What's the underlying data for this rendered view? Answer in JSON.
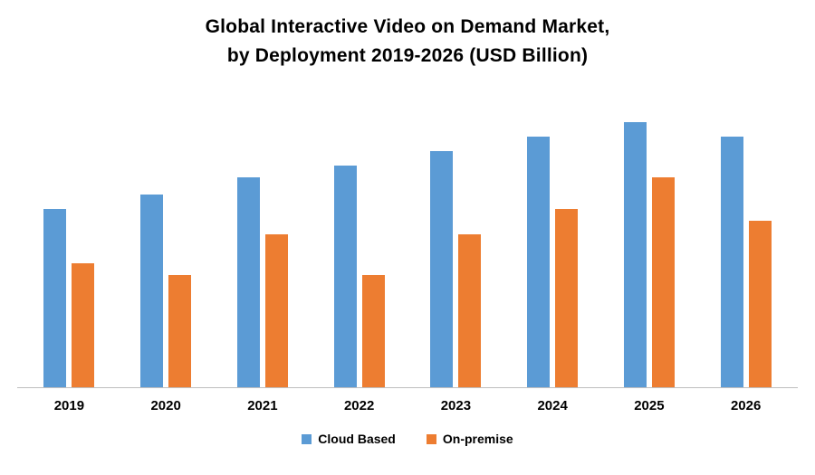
{
  "title": {
    "line1": "Global Interactive Video on Demand Market,",
    "line2": "by Deployment 2019-2026 (USD Billion)"
  },
  "chart_data": {
    "type": "bar",
    "title": "Global Interactive Video on Demand Market, by Deployment 2019-2026 (USD Billion)",
    "categories": [
      "2019",
      "2020",
      "2021",
      "2022",
      "2023",
      "2024",
      "2025",
      "2026"
    ],
    "series": [
      {
        "name": "Cloud Based",
        "color": "#5B9BD5",
        "values": [
          6.2,
          6.7,
          7.3,
          7.7,
          8.2,
          8.7,
          9.2,
          8.7
        ]
      },
      {
        "name": "On-premise",
        "color": "#ED7D31",
        "values": [
          4.3,
          3.9,
          5.3,
          3.9,
          5.3,
          6.2,
          7.3,
          5.8
        ]
      }
    ],
    "xlabel": "",
    "ylabel": "",
    "ylim": [
      0,
      10
    ],
    "grid": false,
    "y_axis_visible": false,
    "legend_position": "bottom"
  }
}
